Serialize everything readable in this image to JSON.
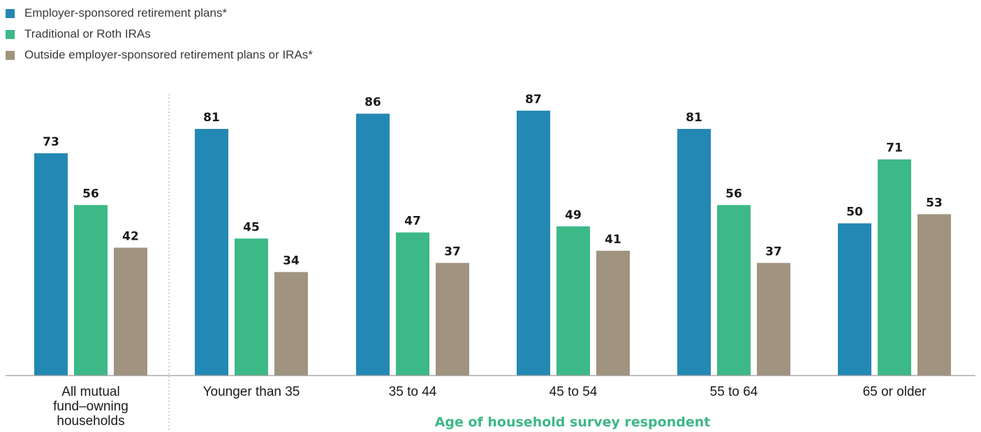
{
  "chart_data": {
    "type": "bar",
    "legend_placement": "top-left",
    "grid": false,
    "ylim": [
      0,
      100
    ],
    "categories": [
      "All mutual fund–owning households",
      "Younger than 35",
      "35 to 44",
      "45 to 54",
      "55 to 64",
      "65 or older"
    ],
    "category_lines": [
      [
        "All mutual",
        "fund–owning",
        "households"
      ],
      [
        "Younger than 35"
      ],
      [
        "35 to 44"
      ],
      [
        "45 to 54"
      ],
      [
        "55 to 64"
      ],
      [
        "65 or older"
      ]
    ],
    "series": [
      {
        "name": "Employer-sponsored retirement plans*",
        "color": "#2488b4",
        "values": [
          73,
          81,
          86,
          87,
          81,
          50
        ]
      },
      {
        "name": "Traditional or Roth IRAs",
        "color": "#3db887",
        "values": [
          56,
          45,
          47,
          49,
          56,
          71
        ]
      },
      {
        "name": "Outside employer-sponsored retirement plans or IRAs*",
        "color": "#a09480",
        "values": [
          42,
          34,
          37,
          41,
          37,
          53
        ]
      }
    ],
    "xlabel": "Age of household survey respondent",
    "ylabel": ""
  }
}
